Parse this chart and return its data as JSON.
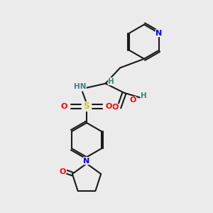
{
  "background_color": "#ebebeb",
  "bond_color": "#1a1a1a",
  "atom_colors": {
    "N": "#0000ff",
    "O": "#ff0000",
    "S": "#cccc00",
    "C": "#1a1a1a",
    "H": "#408080"
  },
  "lw": 1.5
}
